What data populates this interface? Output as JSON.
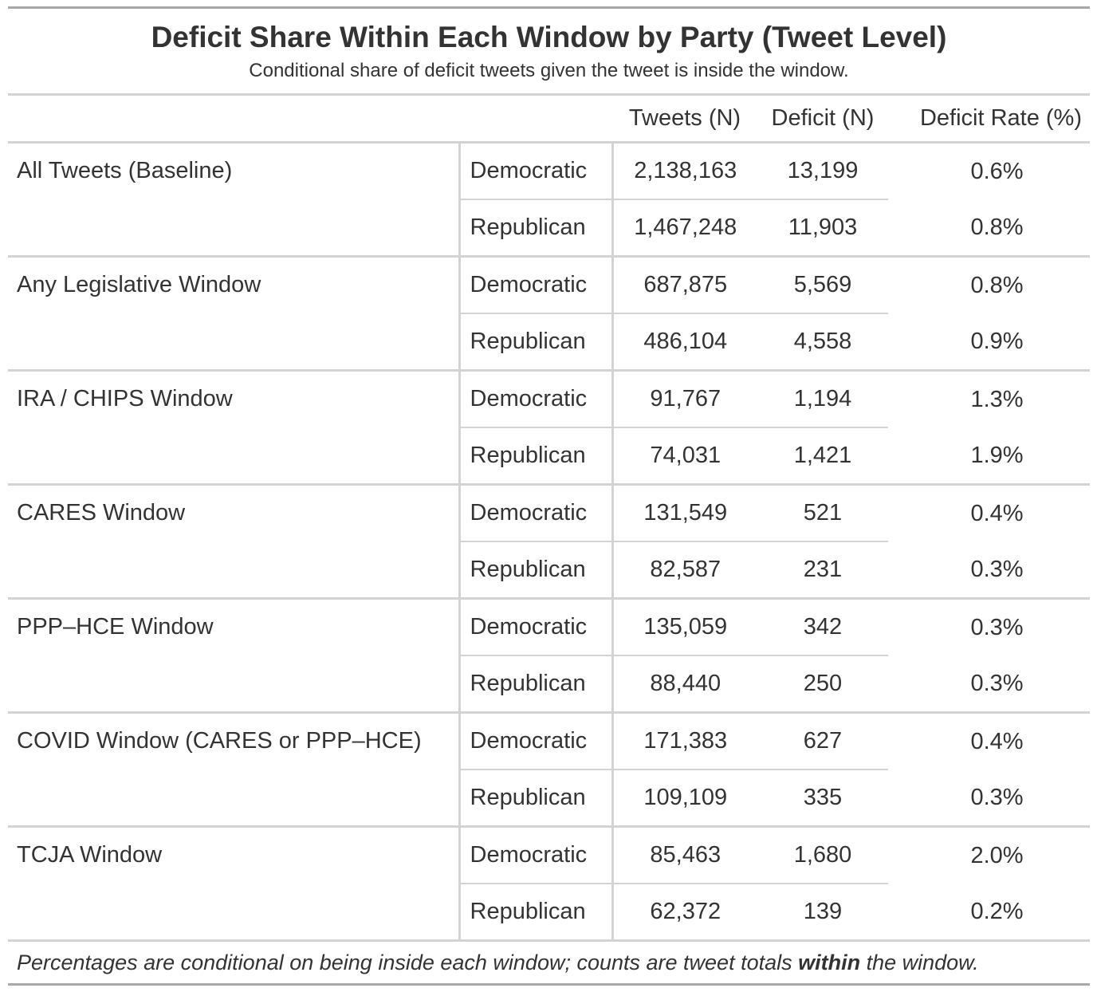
{
  "chart_data": {
    "type": "table",
    "title": "Deficit Share Within Each Window by Party (Tweet Level)",
    "subtitle": "Conditional share of deficit tweets given the tweet is inside the window.",
    "columns": [
      "Tweets (N)",
      "Deficit (N)",
      "Deficit Rate (%)"
    ],
    "groups": [
      {
        "label": "All Tweets (Baseline)",
        "rows": [
          {
            "party": "Democratic",
            "tweets": "2,138,163",
            "deficit": "13,199",
            "rate": "0.6%"
          },
          {
            "party": "Republican",
            "tweets": "1,467,248",
            "deficit": "11,903",
            "rate": "0.8%"
          }
        ]
      },
      {
        "label": "Any Legislative Window",
        "rows": [
          {
            "party": "Democratic",
            "tweets": "687,875",
            "deficit": "5,569",
            "rate": "0.8%"
          },
          {
            "party": "Republican",
            "tweets": "486,104",
            "deficit": "4,558",
            "rate": "0.9%"
          }
        ]
      },
      {
        "label": "IRA / CHIPS Window",
        "rows": [
          {
            "party": "Democratic",
            "tweets": "91,767",
            "deficit": "1,194",
            "rate": "1.3%"
          },
          {
            "party": "Republican",
            "tweets": "74,031",
            "deficit": "1,421",
            "rate": "1.9%"
          }
        ]
      },
      {
        "label": "CARES Window",
        "rows": [
          {
            "party": "Democratic",
            "tweets": "131,549",
            "deficit": "521",
            "rate": "0.4%"
          },
          {
            "party": "Republican",
            "tweets": "82,587",
            "deficit": "231",
            "rate": "0.3%"
          }
        ]
      },
      {
        "label": "PPP–HCE Window",
        "rows": [
          {
            "party": "Democratic",
            "tweets": "135,059",
            "deficit": "342",
            "rate": "0.3%"
          },
          {
            "party": "Republican",
            "tweets": "88,440",
            "deficit": "250",
            "rate": "0.3%"
          }
        ]
      },
      {
        "label": "COVID Window (CARES or PPP–HCE)",
        "rows": [
          {
            "party": "Democratic",
            "tweets": "171,383",
            "deficit": "627",
            "rate": "0.4%"
          },
          {
            "party": "Republican",
            "tweets": "109,109",
            "deficit": "335",
            "rate": "0.3%"
          }
        ]
      },
      {
        "label": "TCJA Window",
        "rows": [
          {
            "party": "Democratic",
            "tweets": "85,463",
            "deficit": "1,680",
            "rate": "2.0%"
          },
          {
            "party": "Republican",
            "tweets": "62,372",
            "deficit": "139",
            "rate": "0.2%"
          }
        ]
      }
    ],
    "footnote": {
      "before": "Percentages are conditional on being inside each window; counts are tweet totals ",
      "emphasis": "within",
      "after": " the window."
    }
  }
}
